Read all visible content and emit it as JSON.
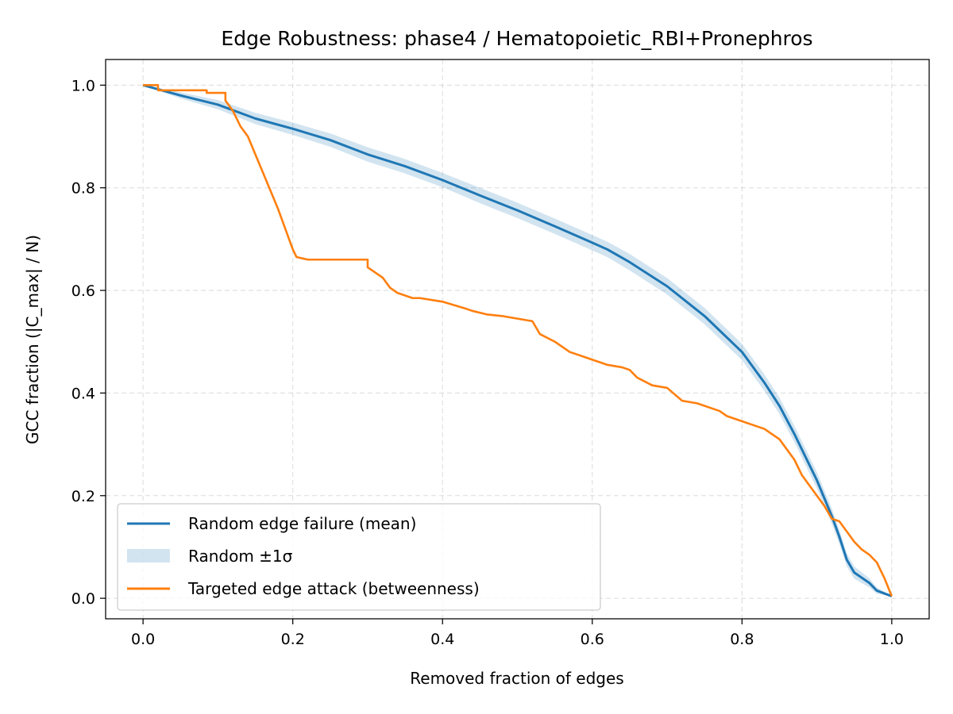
{
  "chart_data": {
    "type": "line",
    "title": "Edge Robustness: phase4 / Hematopoietic_RBI+Pronephros",
    "xlabel": "Removed fraction of edges",
    "ylabel": "GCC fraction (|C_max| / N)",
    "xlim": [
      -0.05,
      1.05
    ],
    "ylim": [
      -0.04,
      1.05
    ],
    "xticks": [
      0.0,
      0.2,
      0.4,
      0.6,
      0.8,
      1.0
    ],
    "xtick_labels": [
      "0.0",
      "0.2",
      "0.4",
      "0.6",
      "0.8",
      "1.0"
    ],
    "yticks": [
      0.0,
      0.2,
      0.4,
      0.6,
      0.8,
      1.0
    ],
    "ytick_labels": [
      "0.0",
      "0.2",
      "0.4",
      "0.6",
      "0.8",
      "1.0"
    ],
    "grid": true,
    "legend_position": "lower-left",
    "legend": [
      {
        "label": "Random edge failure (mean)",
        "kind": "line",
        "color": "#1f77b4"
      },
      {
        "label": "Random ±1σ",
        "kind": "band",
        "color": "#1f77b4"
      },
      {
        "label": "Targeted edge attack (betweenness)",
        "kind": "line",
        "color": "#ff7f0e"
      }
    ],
    "series": [
      {
        "name": "Random edge failure (mean)",
        "color": "#1f77b4",
        "x": [
          0.0,
          0.05,
          0.1,
          0.15,
          0.2,
          0.25,
          0.3,
          0.35,
          0.4,
          0.45,
          0.5,
          0.55,
          0.6,
          0.62,
          0.65,
          0.7,
          0.75,
          0.8,
          0.83,
          0.85,
          0.87,
          0.9,
          0.92,
          0.93,
          0.94,
          0.95,
          0.97,
          0.98,
          1.0
        ],
        "y": [
          1.0,
          0.98,
          0.962,
          0.935,
          0.915,
          0.893,
          0.865,
          0.842,
          0.815,
          0.785,
          0.756,
          0.725,
          0.693,
          0.68,
          0.655,
          0.608,
          0.55,
          0.48,
          0.42,
          0.375,
          0.32,
          0.23,
          0.16,
          0.12,
          0.075,
          0.05,
          0.03,
          0.015,
          0.004
        ]
      },
      {
        "name": "Random ±1σ",
        "color": "#1f77b4",
        "band": true,
        "x": [
          0.0,
          0.05,
          0.1,
          0.15,
          0.2,
          0.25,
          0.3,
          0.35,
          0.4,
          0.45,
          0.5,
          0.55,
          0.6,
          0.62,
          0.65,
          0.7,
          0.75,
          0.8,
          0.83,
          0.85,
          0.87,
          0.9,
          0.92,
          0.93,
          0.94,
          0.95,
          0.97,
          0.98,
          1.0
        ],
        "sigma": [
          0.0,
          0.006,
          0.009,
          0.011,
          0.012,
          0.013,
          0.014,
          0.014,
          0.014,
          0.015,
          0.015,
          0.015,
          0.015,
          0.015,
          0.016,
          0.016,
          0.016,
          0.016,
          0.016,
          0.016,
          0.016,
          0.016,
          0.015,
          0.014,
          0.013,
          0.012,
          0.009,
          0.006,
          0.0
        ]
      },
      {
        "name": "Targeted edge attack (betweenness)",
        "color": "#ff7f0e",
        "x": [
          0.0,
          0.01,
          0.02,
          0.02,
          0.03,
          0.05,
          0.07,
          0.085,
          0.085,
          0.11,
          0.11,
          0.12,
          0.13,
          0.14,
          0.16,
          0.18,
          0.2,
          0.205,
          0.22,
          0.24,
          0.26,
          0.28,
          0.3,
          0.3,
          0.31,
          0.32,
          0.33,
          0.34,
          0.36,
          0.37,
          0.4,
          0.43,
          0.44,
          0.46,
          0.48,
          0.5,
          0.52,
          0.53,
          0.55,
          0.56,
          0.57,
          0.59,
          0.6,
          0.62,
          0.64,
          0.65,
          0.66,
          0.68,
          0.7,
          0.72,
          0.74,
          0.76,
          0.77,
          0.78,
          0.8,
          0.82,
          0.83,
          0.84,
          0.85,
          0.86,
          0.87,
          0.88,
          0.89,
          0.9,
          0.91,
          0.92,
          0.93,
          0.94,
          0.95,
          0.96,
          0.97,
          0.98,
          0.99,
          1.0
        ],
        "y": [
          1.0,
          1.0,
          1.0,
          0.99,
          0.99,
          0.99,
          0.99,
          0.99,
          0.985,
          0.985,
          0.97,
          0.95,
          0.92,
          0.9,
          0.83,
          0.76,
          0.68,
          0.665,
          0.66,
          0.66,
          0.66,
          0.66,
          0.66,
          0.645,
          0.635,
          0.625,
          0.605,
          0.595,
          0.585,
          0.585,
          0.578,
          0.565,
          0.56,
          0.553,
          0.55,
          0.545,
          0.54,
          0.515,
          0.5,
          0.49,
          0.48,
          0.47,
          0.465,
          0.455,
          0.45,
          0.445,
          0.43,
          0.415,
          0.41,
          0.385,
          0.38,
          0.37,
          0.365,
          0.355,
          0.345,
          0.335,
          0.33,
          0.32,
          0.31,
          0.29,
          0.27,
          0.24,
          0.22,
          0.2,
          0.18,
          0.155,
          0.15,
          0.13,
          0.11,
          0.095,
          0.085,
          0.07,
          0.04,
          0.004
        ]
      }
    ]
  }
}
